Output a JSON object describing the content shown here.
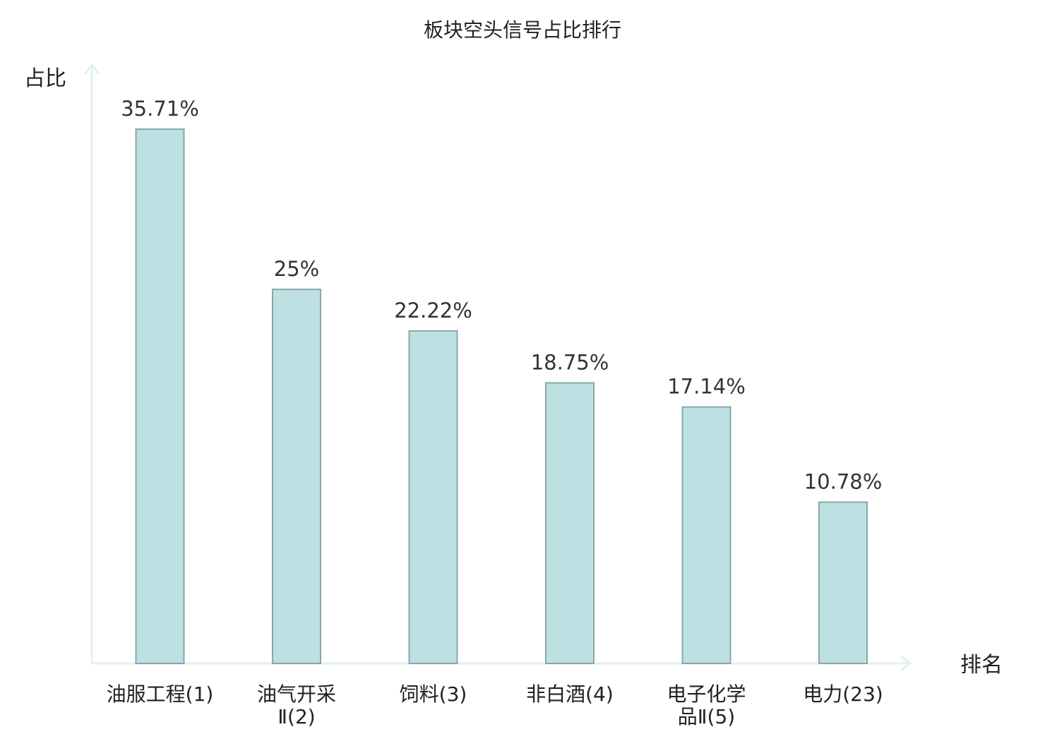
{
  "chart_data": {
    "type": "bar",
    "title": "板块空头信号占比排行",
    "xlabel": "排名",
    "ylabel": "占比",
    "ylim": [
      0,
      40
    ],
    "grid": false,
    "legend": "none",
    "unit": "%",
    "categories": [
      {
        "name": "油服工程",
        "rank": "(1)",
        "lines": [
          "油服工程(1)"
        ],
        "highlight": false
      },
      {
        "name": "油气开采Ⅱ",
        "rank": "(2)",
        "lines": [
          "油气开采",
          "Ⅱ(2)"
        ],
        "highlight": false
      },
      {
        "name": "饲料",
        "rank": "(3)",
        "lines": [
          "饲料(3)"
        ],
        "highlight": false
      },
      {
        "name": "非白酒",
        "rank": "(4)",
        "lines": [
          "非白酒(4)"
        ],
        "highlight": false
      },
      {
        "name": "电子化学品Ⅱ",
        "rank": "(5)",
        "lines": [
          "电子化学",
          "品Ⅱ(5)"
        ],
        "highlight": false
      },
      {
        "name": "电力",
        "rank": "(23)",
        "lines": [
          "电力(23)"
        ],
        "highlight": true
      }
    ],
    "values": [
      35.71,
      25,
      22.22,
      18.75,
      17.14,
      10.78
    ],
    "value_labels": [
      "35.71%",
      "25%",
      "22.22%",
      "18.75%",
      "17.14%",
      "10.78%"
    ],
    "colors": {
      "bar_fill": "#bde1e3",
      "bar_stroke": "#8aa6a8",
      "axis": "#e0f2ef",
      "highlight_text": "#e8141a",
      "text": "#222222"
    }
  }
}
